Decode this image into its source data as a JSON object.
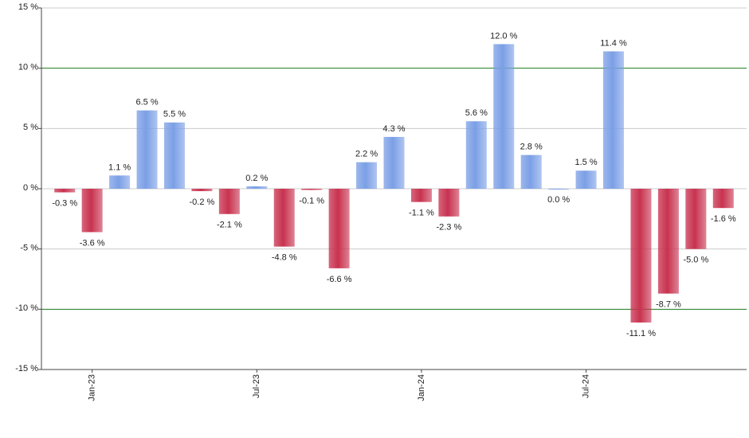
{
  "chart_data": {
    "type": "bar",
    "categories": [
      null,
      "Jan-23",
      null,
      null,
      null,
      null,
      null,
      "Jul-23",
      null,
      null,
      null,
      null,
      null,
      "Jan-24",
      null,
      null,
      null,
      null,
      null,
      "Jul-24",
      null,
      null,
      null,
      null,
      null
    ],
    "values": [
      -0.3,
      -3.6,
      1.1,
      6.5,
      5.5,
      -0.2,
      -2.1,
      0.2,
      -4.8,
      -0.1,
      -6.6,
      2.2,
      4.3,
      -1.1,
      -2.3,
      5.6,
      12.0,
      2.8,
      0.0,
      1.5,
      11.4,
      -11.1,
      -8.7,
      -5.0,
      -1.6
    ],
    "value_labels": [
      "-0.3 %",
      "-3.6 %",
      "1.1 %",
      "6.5 %",
      "5.5 %",
      "-0.2 %",
      "-2.1 %",
      "0.2 %",
      "-4.8 %",
      "-0.1 %",
      "-6.6 %",
      "2.2 %",
      "4.3 %",
      "-1.1 %",
      "-2.3 %",
      "5.6 %",
      "12.0 %",
      "2.8 %",
      "0.0 %",
      "1.5 %",
      "11.4 %",
      "-11.1 %",
      "-8.7 %",
      "-5.0 %",
      "-1.6 %"
    ],
    "positive_color": "#7b9fe6",
    "negative_color": "#c8324f",
    "ylim": [
      -15,
      15
    ],
    "yticks": [
      {
        "value": -15,
        "label": "-15 %"
      },
      {
        "value": -10,
        "label": "-10 %"
      },
      {
        "value": -5,
        "label": "-5 %"
      },
      {
        "value": 0,
        "label": "0 %"
      },
      {
        "value": 5,
        "label": "5 %"
      },
      {
        "value": 10,
        "label": "10 %"
      },
      {
        "value": 15,
        "label": "15 %"
      }
    ],
    "grid": true,
    "grid_color": "#cccccc",
    "accent_ticks": [
      -10,
      10
    ],
    "accent_color": "#1a7a1a"
  }
}
